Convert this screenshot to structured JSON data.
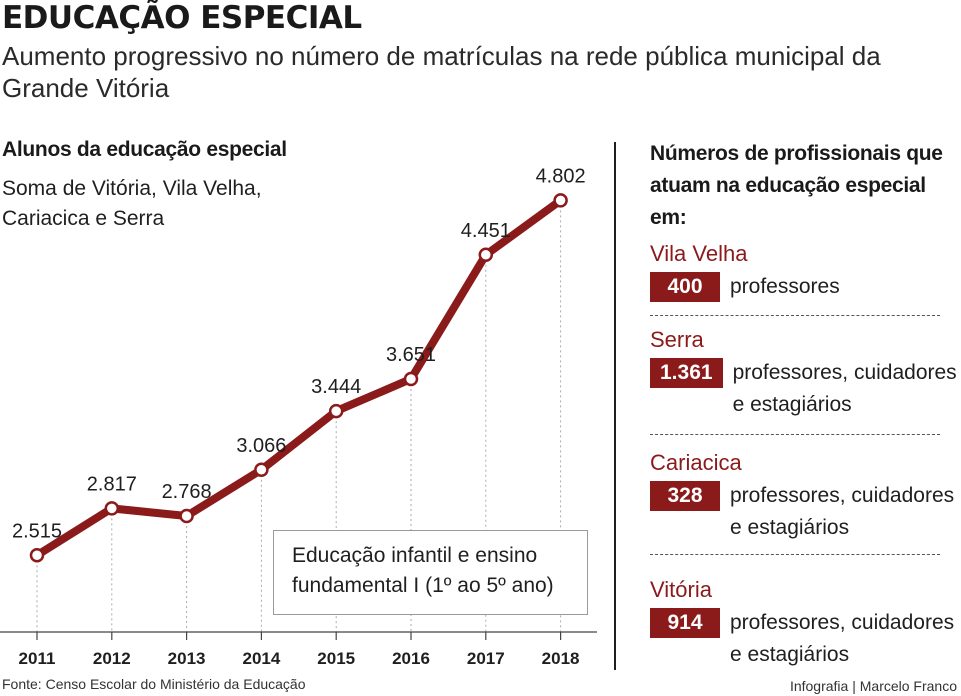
{
  "title": "EDUCAÇÃO ESPECIAL",
  "subtitle": "Aumento progressivo no número de matrículas na rede pública municipal da Grande Vitória",
  "left_heading": "Alunos da educação especial",
  "left_subheading": "Soma de Vitória, Vila Velha, Cariacica e Serra",
  "legend_text": "Educação infantil e ensino fundamental I (1º ao 5º ano)",
  "source": "Fonte: Censo Escolar do Ministério da Educação",
  "credit": "Infografia | Marcelo Franco",
  "colors": {
    "accent": "#8b1a1a",
    "text": "#1f1f1f",
    "grid": "#aaaaaa"
  },
  "chart_data": {
    "type": "line",
    "categories": [
      "2011",
      "2012",
      "2013",
      "2014",
      "2015",
      "2016",
      "2017",
      "2018"
    ],
    "values": [
      2515,
      2817,
      2768,
      3066,
      3444,
      3651,
      4451,
      4802
    ],
    "value_labels": [
      "2.515",
      "2.817",
      "2.768",
      "3.066",
      "3.444",
      "3.651",
      "4.451",
      "4.802"
    ],
    "ylim": [
      1000,
      5000
    ],
    "grid": "vertical dashed"
  },
  "right_panel": {
    "heading": "Números de profissionais que atuam na educação especial em:",
    "items": [
      {
        "city": "Vila Velha",
        "count": "400",
        "desc": "professores"
      },
      {
        "city": "Serra",
        "count": "1.361",
        "desc": "professores, cuidadores e estagiários"
      },
      {
        "city": "Cariacica",
        "count": "328",
        "desc": "professores, cuidadores e estagiários"
      },
      {
        "city": "Vitória",
        "count": "914",
        "desc": "professores, cuidadores e estagiários"
      }
    ]
  }
}
